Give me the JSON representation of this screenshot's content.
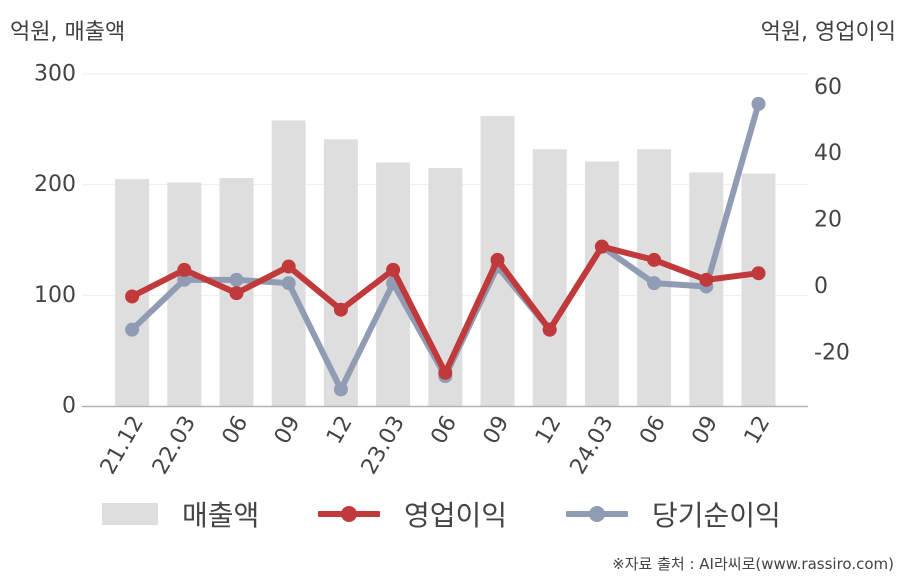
{
  "labels": {
    "left_unit": "억원, 매출액",
    "right_unit": "억원, 영업이익",
    "source": "※자료 출처 : AI라씨로(www.rassiro.com)"
  },
  "colors": {
    "bar": "#dedede",
    "operating_profit": "#c0393b",
    "net_income": "#909cb3",
    "axis": "#b3b3b3",
    "grid": "#eeeeee"
  },
  "chart_data": {
    "type": "bar",
    "categories": [
      "21.12",
      "22.03",
      "06",
      "09",
      "12",
      "23.03",
      "06",
      "09",
      "12",
      "24.03",
      "06",
      "09",
      "12"
    ],
    "series": [
      {
        "name": "매출액",
        "type": "bar",
        "axis": "left",
        "values": [
          205,
          202,
          206,
          258,
          241,
          220,
          215,
          262,
          232,
          221,
          232,
          211,
          210
        ]
      },
      {
        "name": "영업이익",
        "type": "line",
        "axis": "right",
        "values": [
          -3,
          5,
          -2,
          6,
          -7,
          5,
          -26,
          8,
          -13,
          12,
          8,
          2,
          4
        ]
      },
      {
        "name": "당기순이익",
        "type": "line",
        "axis": "right",
        "values": [
          -13,
          2,
          2,
          1,
          -31,
          1,
          -27,
          6,
          -13,
          12,
          1,
          0,
          55
        ]
      }
    ],
    "left_axis": {
      "ylim": [
        0,
        300
      ],
      "ticks": [
        0,
        100,
        200,
        300
      ]
    },
    "right_axis": {
      "ylim": [
        -36,
        64
      ],
      "ticks": [
        "60",
        "40",
        "20",
        "0",
        "-20"
      ]
    },
    "legend": "bottom",
    "grid": true
  }
}
